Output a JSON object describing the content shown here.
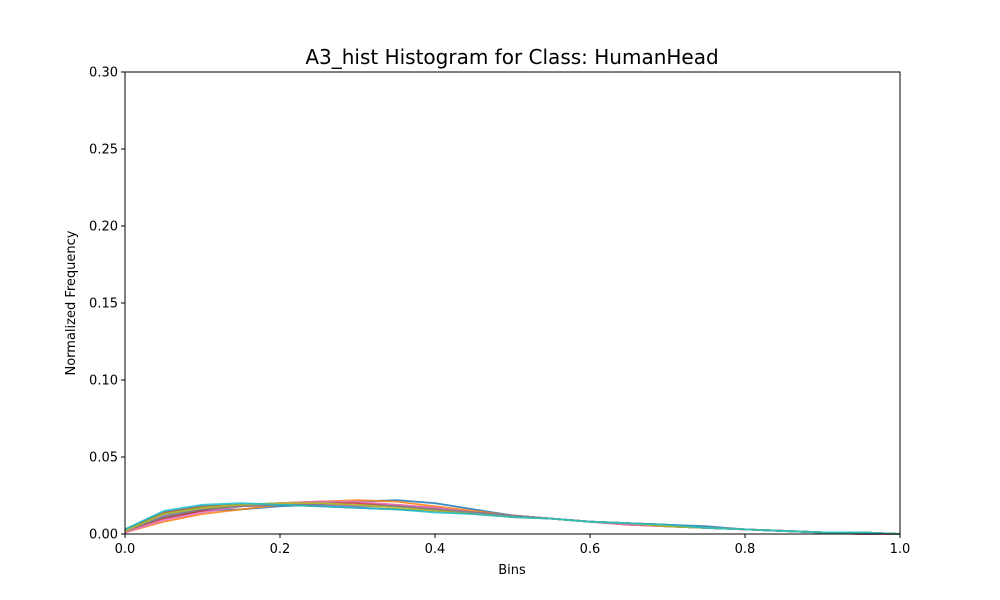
{
  "chart_data": {
    "type": "line",
    "title": "A3_hist Histogram for Class: HumanHead",
    "xlabel": "Bins",
    "ylabel": "Normalized Frequency",
    "xlim": [
      0.0,
      1.0
    ],
    "ylim": [
      0.0,
      0.3
    ],
    "xticks": [
      "0.0",
      "0.2",
      "0.4",
      "0.6",
      "0.8",
      "1.0"
    ],
    "yticks": [
      "0.00",
      "0.05",
      "0.10",
      "0.15",
      "0.20",
      "0.25",
      "0.30"
    ],
    "grid": false,
    "legend": false,
    "x": [
      0.0,
      0.05,
      0.1,
      0.15,
      0.2,
      0.25,
      0.3,
      0.35,
      0.4,
      0.45,
      0.5,
      0.55,
      0.6,
      0.65,
      0.7,
      0.75,
      0.8,
      0.85,
      0.9,
      0.95,
      1.0
    ],
    "series": [
      {
        "color": "#1f77b4",
        "values": [
          0.002,
          0.011,
          0.015,
          0.016,
          0.018,
          0.019,
          0.021,
          0.022,
          0.02,
          0.016,
          0.012,
          0.01,
          0.008,
          0.007,
          0.006,
          0.005,
          0.003,
          0.002,
          0.001,
          0.001,
          0.0
        ]
      },
      {
        "color": "#ff7f0e",
        "values": [
          0.001,
          0.008,
          0.013,
          0.016,
          0.019,
          0.021,
          0.022,
          0.021,
          0.018,
          0.015,
          0.012,
          0.01,
          0.008,
          0.006,
          0.005,
          0.004,
          0.003,
          0.002,
          0.001,
          0.0,
          0.0
        ]
      },
      {
        "color": "#2ca02c",
        "values": [
          0.003,
          0.013,
          0.017,
          0.019,
          0.02,
          0.02,
          0.019,
          0.018,
          0.016,
          0.014,
          0.012,
          0.01,
          0.008,
          0.007,
          0.005,
          0.004,
          0.003,
          0.002,
          0.001,
          0.001,
          0.0
        ]
      },
      {
        "color": "#d62728",
        "values": [
          0.002,
          0.01,
          0.015,
          0.018,
          0.02,
          0.021,
          0.02,
          0.019,
          0.017,
          0.014,
          0.012,
          0.01,
          0.008,
          0.006,
          0.005,
          0.004,
          0.003,
          0.002,
          0.001,
          0.0,
          0.0
        ]
      },
      {
        "color": "#9467bd",
        "values": [
          0.002,
          0.012,
          0.016,
          0.018,
          0.019,
          0.019,
          0.018,
          0.018,
          0.016,
          0.014,
          0.012,
          0.01,
          0.008,
          0.007,
          0.005,
          0.004,
          0.003,
          0.002,
          0.001,
          0.001,
          0.0
        ]
      },
      {
        "color": "#8c564b",
        "values": [
          0.003,
          0.014,
          0.018,
          0.019,
          0.019,
          0.018,
          0.017,
          0.016,
          0.015,
          0.013,
          0.011,
          0.01,
          0.008,
          0.007,
          0.006,
          0.004,
          0.003,
          0.002,
          0.001,
          0.001,
          0.0
        ]
      },
      {
        "color": "#e377c2",
        "values": [
          0.001,
          0.009,
          0.014,
          0.018,
          0.02,
          0.021,
          0.021,
          0.019,
          0.017,
          0.014,
          0.012,
          0.01,
          0.008,
          0.006,
          0.005,
          0.004,
          0.003,
          0.002,
          0.001,
          0.0,
          0.0
        ]
      },
      {
        "color": "#7f7f7f",
        "values": [
          0.002,
          0.011,
          0.016,
          0.018,
          0.019,
          0.02,
          0.019,
          0.018,
          0.016,
          0.014,
          0.012,
          0.01,
          0.008,
          0.007,
          0.005,
          0.004,
          0.003,
          0.002,
          0.001,
          0.001,
          0.0
        ]
      },
      {
        "color": "#bcbd22",
        "values": [
          0.002,
          0.013,
          0.017,
          0.019,
          0.02,
          0.02,
          0.019,
          0.017,
          0.015,
          0.013,
          0.011,
          0.01,
          0.008,
          0.007,
          0.005,
          0.004,
          0.003,
          0.002,
          0.001,
          0.001,
          0.0
        ]
      },
      {
        "color": "#17becf",
        "values": [
          0.003,
          0.015,
          0.019,
          0.02,
          0.019,
          0.018,
          0.017,
          0.016,
          0.014,
          0.013,
          0.011,
          0.01,
          0.008,
          0.007,
          0.006,
          0.004,
          0.003,
          0.002,
          0.001,
          0.001,
          0.0
        ]
      }
    ]
  }
}
